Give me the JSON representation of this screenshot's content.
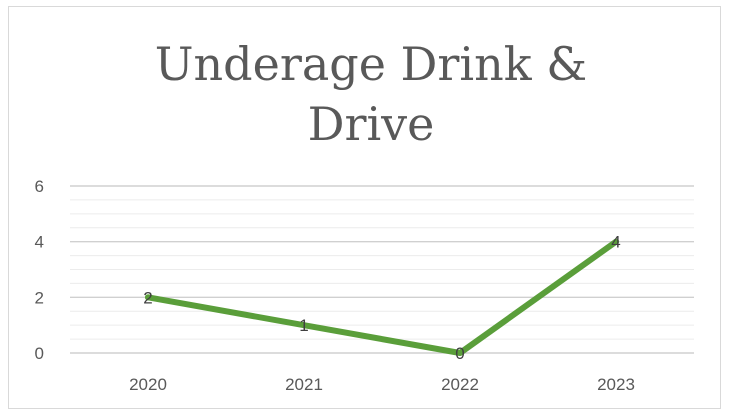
{
  "chart_data": {
    "type": "line",
    "title_lines": [
      "Underage Drink &",
      "Drive"
    ],
    "categories": [
      "2020",
      "2021",
      "2022",
      "2023"
    ],
    "values": [
      2,
      1,
      0,
      4
    ],
    "data_labels": [
      "2",
      "1",
      "0",
      "4"
    ],
    "ylim": [
      0,
      6
    ],
    "yticks": [
      "0",
      "2",
      "4",
      "6"
    ],
    "grid": true,
    "legend": "none",
    "series_color": "#5a9e3a",
    "grid_color": "#d9d9d9"
  }
}
